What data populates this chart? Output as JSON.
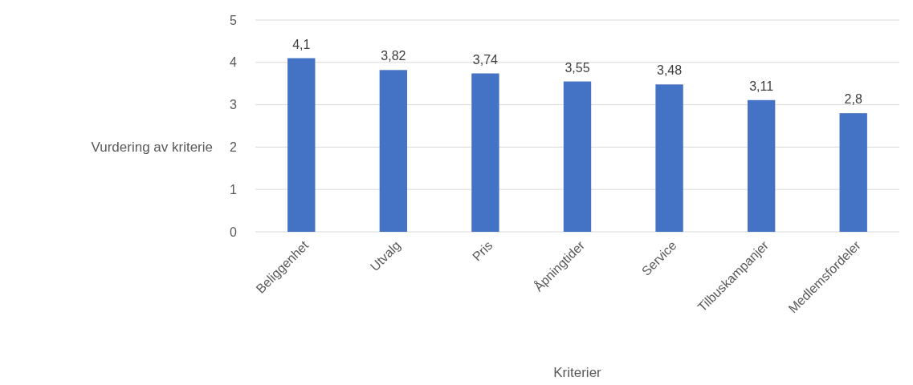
{
  "chart_data": {
    "type": "bar",
    "xlabel": "Kriterier",
    "ylabel": "Vurdering av kriterie",
    "categories": [
      "Beliggenhet",
      "Utvalg",
      "Pris",
      "Åpningtider",
      "Service",
      "Tilbuskampanjer",
      "Medlemsfordeler"
    ],
    "values": [
      4.1,
      3.82,
      3.74,
      3.55,
      3.48,
      3.11,
      2.8
    ],
    "value_labels": [
      "4,1",
      "3,82",
      "3,74",
      "3,55",
      "3,48",
      "3,11",
      "2,8"
    ],
    "color": "#4472c4",
    "ylim": [
      0,
      5
    ],
    "yticks": [
      0,
      1,
      2,
      3,
      4,
      5
    ],
    "grid": "y"
  }
}
